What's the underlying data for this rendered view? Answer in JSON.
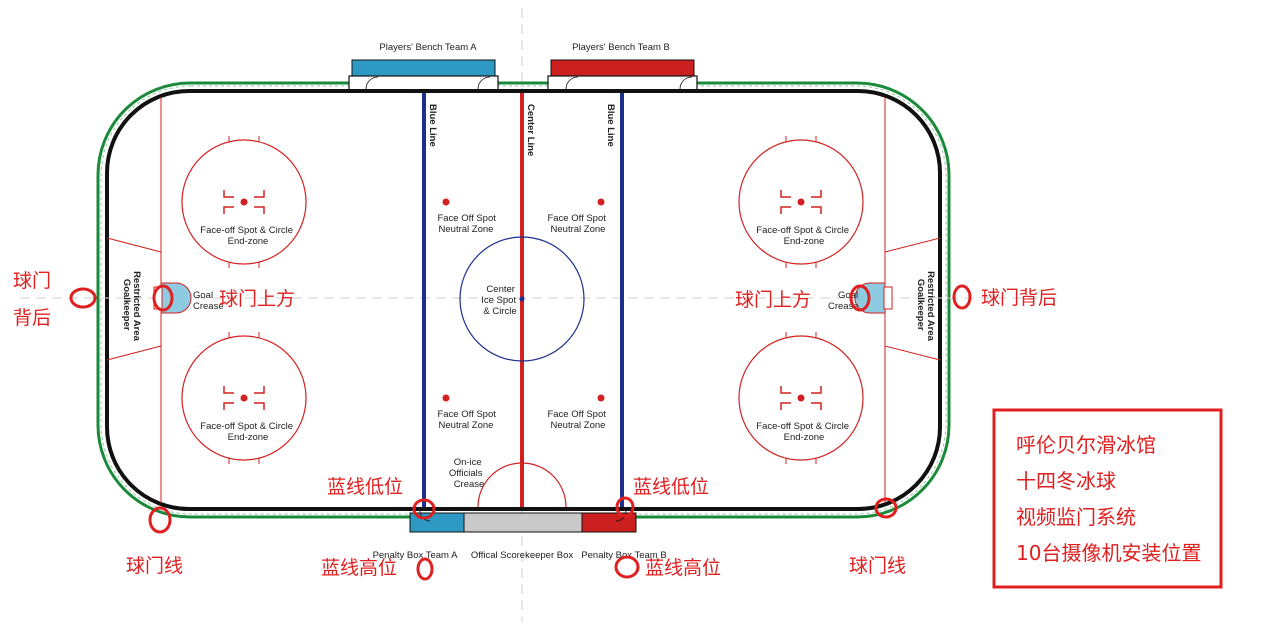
{
  "bench": {
    "team_a": "Players' Bench Team A",
    "team_b": "Players' Bench Team B"
  },
  "lines": {
    "blue_left": "Blue Line",
    "center": "Center Line",
    "blue_right": "Blue Line"
  },
  "zones": {
    "faceoff_end_line1": "Face-off Spot & Circle",
    "faceoff_end_line2": "End-zone",
    "neutral_line1": "Face Off Spot",
    "neutral_line2": "Neutral Zone",
    "center_line1": "Center",
    "center_line2": "Ice Spot",
    "center_line3": "& Circle",
    "officials_line1": "On-ice",
    "officials_line2": "Officials",
    "officials_line3": "Crease",
    "goal_crease_line1": "Goal",
    "goal_crease_line2": "Crease",
    "goalkeeper_line1": "Goalkeeper",
    "goalkeeper_line2": "Restricted Area"
  },
  "boxes": {
    "penalty_a": "Penalty Box Team A",
    "scorekeeper": "Offical Scorekeeper Box",
    "penalty_b": "Penalty Box Team B"
  },
  "camera_labels": {
    "behind_goal_left_1": "球门",
    "behind_goal_left_2": "背后",
    "above_goal_left": "球门上方",
    "above_goal_right": "球门上方",
    "behind_goal_right": "球门背后",
    "blue_low_left": "蓝线低位",
    "blue_low_right": "蓝线低位",
    "blue_high_left": "蓝线高位",
    "blue_high_right": "蓝线高位",
    "goal_line_left": "球门线",
    "goal_line_right": "球门线"
  },
  "legend": {
    "line1": "呼伦贝尔滑冰馆",
    "line2": "十四冬冰球",
    "line3": "视频监门系统",
    "line4": "10台摄像机安装位置"
  },
  "colors": {
    "red": "#d32020",
    "blue": "#1c2f8c",
    "green": "#1a8a3a",
    "bench_blue": "#2e9ac4",
    "bench_red": "#cc1f1f",
    "annotation": "#e02020"
  }
}
